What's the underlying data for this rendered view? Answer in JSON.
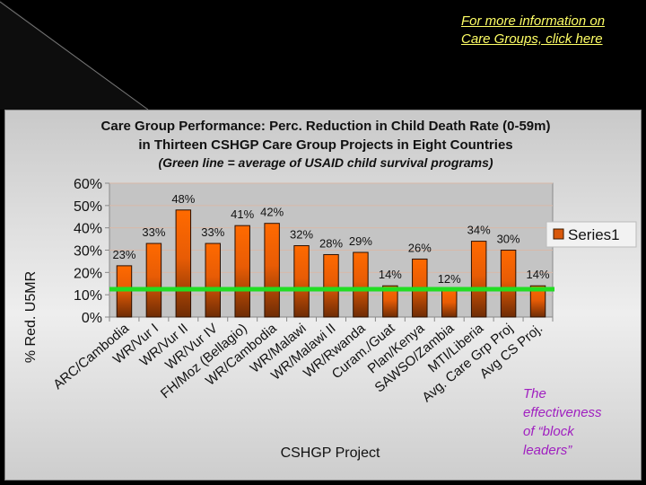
{
  "link": {
    "text_line1": "For more information on",
    "text_line2": "Care Groups, click here",
    "color": "#ffff66"
  },
  "note": {
    "line1": "The",
    "line2": "effectiveness",
    "line3": "of “block",
    "line4": "leaders”",
    "color": "#a020c0"
  },
  "chart_data": {
    "type": "bar",
    "title": "Care Group Performance:  Perc. Reduction in Child Death Rate (0-59m)",
    "title_line2": "in Thirteen CSHGP Care Group Projects in Eight Countries",
    "subtitle": "(Green line = average of USAID child survival programs)",
    "xlabel": "CSHGP Project",
    "ylabel": "% Red. U5MR",
    "ylim": [
      0,
      60
    ],
    "yticks": [
      0,
      10,
      20,
      30,
      40,
      50,
      60
    ],
    "ytick_labels": [
      "0%",
      "10%",
      "20%",
      "30%",
      "40%",
      "50%",
      "60%"
    ],
    "categories": [
      "ARC/Cambodia",
      "WR/Vur I",
      "WR/Vur II",
      "WR/Vur IV",
      "FH/Moz (Bellagio)",
      "WR/Cambodia",
      "WR/Malawi",
      "WR/Malawi II",
      "WR/Rwanda",
      "Curam./Guat",
      "Plan/Kenya",
      "SAWSO/Zambia",
      "MTI/Liberia",
      "Avg. Care Grp Proj",
      "Avg CS Proj."
    ],
    "series": [
      {
        "name": "Series1",
        "values": [
          23,
          33,
          48,
          33,
          41,
          42,
          32,
          28,
          29,
          14,
          26,
          12,
          34,
          30,
          14
        ],
        "color": "#e8600a"
      }
    ],
    "data_labels": [
      "23%",
      "33%",
      "48%",
      "33%",
      "41%",
      "42%",
      "32%",
      "28%",
      "29%",
      "14%",
      "26%",
      "12%",
      "34%",
      "30%",
      "14%"
    ],
    "reference_line": {
      "value": 12.5,
      "color": "#22dd22",
      "label": "average of USAID child survival programs"
    },
    "legend": {
      "entries": [
        "Series1"
      ],
      "position": "right"
    },
    "grid": true
  }
}
